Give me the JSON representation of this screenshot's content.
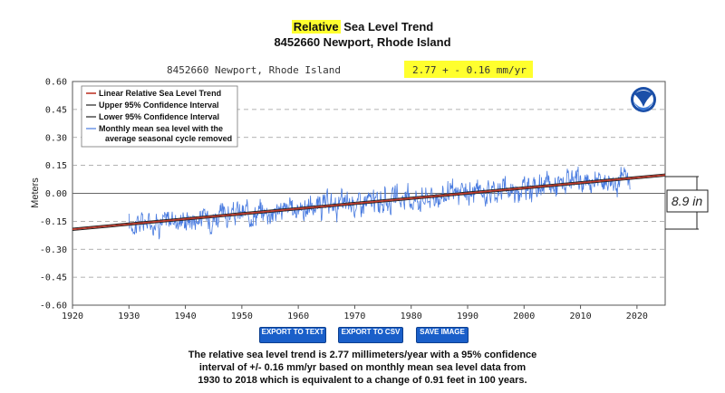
{
  "title": {
    "highlight": "Relative",
    "rest": " Sea Level Trend"
  },
  "subtitle": "8452660 Newport, Rhode Island",
  "header_station": "8452660 Newport, Rhode Island",
  "header_rate": "2.77 +  -  0.16 mm/yr",
  "annotation": "8.9 in",
  "buttons": {
    "text": "EXPORT TO TEXT",
    "csv": "EXPORT TO CSV",
    "image": "SAVE IMAGE"
  },
  "footer": [
    "The relative sea level trend is 2.77 millimeters/year with a 95% confidence",
    "interval of +/- 0.16 mm/yr based on monthly mean sea level data from",
    "1930 to 2018 which is equivalent to a change of 0.91 feet in 100 years."
  ],
  "legend": [
    {
      "label": "Linear Relative Sea Level Trend",
      "color": "#c0392b"
    },
    {
      "label": "Upper 95% Confidence Interval",
      "color": "#222222"
    },
    {
      "label": "Lower 95% Confidence Interval",
      "color": "#222222"
    },
    {
      "label": "Monthly mean sea level with the",
      "label2": "average seasonal cycle removed",
      "color": "#4a7ce0"
    }
  ],
  "chart_data": {
    "type": "line",
    "title": "Relative Sea Level Trend",
    "subtitle": "8452660 Newport, Rhode Island",
    "ylabel": "Meters",
    "xlabel": "",
    "xlim": [
      1920,
      2025
    ],
    "ylim": [
      -0.6,
      0.6
    ],
    "xticks": [
      1920,
      1930,
      1940,
      1950,
      1960,
      1970,
      1980,
      1990,
      2000,
      2010,
      2020
    ],
    "yticks": [
      "0.60",
      "0.45",
      "0.30",
      "0.15",
      "0.00",
      "-0.15",
      "-0.30",
      "-0.45",
      "-0.60"
    ],
    "grid": "horizontal dashed",
    "trend": {
      "rate_mm_per_yr": 2.77,
      "ci_mm_per_yr": 0.16,
      "x": [
        1920,
        2025
      ],
      "y": [
        -0.193,
        0.098
      ]
    },
    "monthly": {
      "start_year": 1930.0,
      "end_year": 2018.9,
      "description": "Monthly mean sea level with the average seasonal cycle removed (approximate)"
    },
    "colors": {
      "series": "#4a7ce0",
      "trend": "#c0392b",
      "ci": "#222222",
      "grid": "#999999"
    }
  }
}
